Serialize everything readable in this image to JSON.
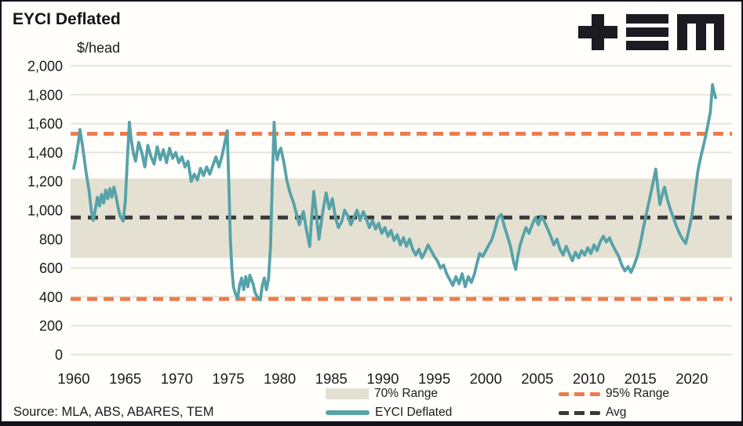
{
  "header": {
    "title": "EYCI Deflated",
    "unit_label": "$/head",
    "logo": {
      "name": "tem-logo",
      "glyphs": [
        "plus",
        "triple-bar",
        "m"
      ],
      "color": "#1c1b22"
    }
  },
  "source_note": "Source: MLA, ABS, ABARES,  TEM",
  "colors": {
    "series_line": "#57a2a9",
    "range95_line": "#ed7c4d",
    "avg_line": "#3a3a3a",
    "band_fill": "#e4e1d2",
    "gridline": "#e7e5d9",
    "axis_text": "#1a1a1a",
    "frame_border": "#14131b"
  },
  "legend": [
    {
      "label": "70% Range",
      "swatch": "band",
      "color": "#e4e1d2"
    },
    {
      "label": "95% Range",
      "swatch": "dashed-line",
      "color": "#ed7c4d"
    },
    {
      "label": "EYCI Deflated",
      "swatch": "solid-line",
      "color": "#57a2a9"
    },
    {
      "label": "Avg",
      "swatch": "dashed-line",
      "color": "#3a3a3a"
    }
  ],
  "chart_data": {
    "type": "line",
    "title": "EYCI Deflated",
    "ylabel": "$/head",
    "xlabel": "",
    "ylim": [
      0,
      2000
    ],
    "xlim": [
      1959.7,
      2023.9
    ],
    "grid": "horizontal",
    "legend_position": "bottom",
    "y_ticks": [
      {
        "value": 0,
        "label": "0"
      },
      {
        "value": 200,
        "label": "200"
      },
      {
        "value": 400,
        "label": "400"
      },
      {
        "value": 600,
        "label": "600"
      },
      {
        "value": 800,
        "label": "800"
      },
      {
        "value": 1000,
        "label": "1,000"
      },
      {
        "value": 1200,
        "label": "1,200"
      },
      {
        "value": 1400,
        "label": "1,400"
      },
      {
        "value": 1600,
        "label": "1,600"
      },
      {
        "value": 1800,
        "label": "1,800"
      },
      {
        "value": 2000,
        "label": "2,000"
      }
    ],
    "x_ticks": [
      1960,
      1965,
      1970,
      1975,
      1980,
      1985,
      1990,
      1995,
      2000,
      2005,
      2010,
      2015,
      2020
    ],
    "band_70_range": [
      670,
      1220
    ],
    "range_95": [
      385,
      1530
    ],
    "avg": 950,
    "series": [
      {
        "name": "EYCI Deflated",
        "points": [
          [
            1960.0,
            1290
          ],
          [
            1960.2,
            1360
          ],
          [
            1960.45,
            1470
          ],
          [
            1960.6,
            1560
          ],
          [
            1960.8,
            1470
          ],
          [
            1961.0,
            1370
          ],
          [
            1961.2,
            1260
          ],
          [
            1961.5,
            1130
          ],
          [
            1961.7,
            1000
          ],
          [
            1961.9,
            930
          ],
          [
            1962.1,
            1010
          ],
          [
            1962.3,
            1090
          ],
          [
            1962.5,
            1030
          ],
          [
            1962.7,
            1110
          ],
          [
            1962.9,
            1050
          ],
          [
            1963.1,
            1140
          ],
          [
            1963.3,
            1080
          ],
          [
            1963.5,
            1150
          ],
          [
            1963.7,
            1090
          ],
          [
            1963.9,
            1160
          ],
          [
            1964.1,
            1100
          ],
          [
            1964.3,
            1020
          ],
          [
            1964.5,
            960
          ],
          [
            1964.8,
            925
          ],
          [
            1965.0,
            1060
          ],
          [
            1965.2,
            1350
          ],
          [
            1965.4,
            1610
          ],
          [
            1965.6,
            1480
          ],
          [
            1965.8,
            1390
          ],
          [
            1966.0,
            1340
          ],
          [
            1966.3,
            1470
          ],
          [
            1966.6,
            1400
          ],
          [
            1966.9,
            1300
          ],
          [
            1967.2,
            1450
          ],
          [
            1967.5,
            1370
          ],
          [
            1967.8,
            1320
          ],
          [
            1968.1,
            1440
          ],
          [
            1968.4,
            1350
          ],
          [
            1968.7,
            1420
          ],
          [
            1969.0,
            1330
          ],
          [
            1969.3,
            1430
          ],
          [
            1969.6,
            1360
          ],
          [
            1969.9,
            1400
          ],
          [
            1970.2,
            1330
          ],
          [
            1970.5,
            1370
          ],
          [
            1970.8,
            1300
          ],
          [
            1971.1,
            1340
          ],
          [
            1971.4,
            1200
          ],
          [
            1971.7,
            1250
          ],
          [
            1972.0,
            1210
          ],
          [
            1972.3,
            1290
          ],
          [
            1972.6,
            1240
          ],
          [
            1972.9,
            1300
          ],
          [
            1973.2,
            1250
          ],
          [
            1973.5,
            1310
          ],
          [
            1973.8,
            1370
          ],
          [
            1974.1,
            1300
          ],
          [
            1974.4,
            1380
          ],
          [
            1974.7,
            1480
          ],
          [
            1974.9,
            1550
          ],
          [
            1975.05,
            1200
          ],
          [
            1975.2,
            800
          ],
          [
            1975.35,
            600
          ],
          [
            1975.5,
            470
          ],
          [
            1975.7,
            420
          ],
          [
            1975.9,
            390
          ],
          [
            1976.1,
            480
          ],
          [
            1976.3,
            530
          ],
          [
            1976.5,
            450
          ],
          [
            1976.7,
            540
          ],
          [
            1976.9,
            470
          ],
          [
            1977.1,
            550
          ],
          [
            1977.4,
            490
          ],
          [
            1977.6,
            430
          ],
          [
            1977.9,
            390
          ],
          [
            1978.1,
            380
          ],
          [
            1978.3,
            480
          ],
          [
            1978.5,
            530
          ],
          [
            1978.7,
            450
          ],
          [
            1978.9,
            520
          ],
          [
            1979.1,
            750
          ],
          [
            1979.25,
            1150
          ],
          [
            1979.45,
            1610
          ],
          [
            1979.6,
            1420
          ],
          [
            1979.75,
            1350
          ],
          [
            1979.9,
            1400
          ],
          [
            1980.1,
            1430
          ],
          [
            1980.4,
            1330
          ],
          [
            1980.7,
            1200
          ],
          [
            1981.0,
            1120
          ],
          [
            1981.3,
            1060
          ],
          [
            1981.6,
            980
          ],
          [
            1981.9,
            900
          ],
          [
            1982.1,
            950
          ],
          [
            1982.3,
            990
          ],
          [
            1982.6,
            860
          ],
          [
            1982.9,
            750
          ],
          [
            1983.1,
            950
          ],
          [
            1983.3,
            1130
          ],
          [
            1983.5,
            1000
          ],
          [
            1983.8,
            800
          ],
          [
            1984.0,
            900
          ],
          [
            1984.2,
            1000
          ],
          [
            1984.5,
            1120
          ],
          [
            1984.8,
            1010
          ],
          [
            1985.1,
            1080
          ],
          [
            1985.4,
            950
          ],
          [
            1985.7,
            880
          ],
          [
            1986.0,
            920
          ],
          [
            1986.3,
            1000
          ],
          [
            1986.6,
            960
          ],
          [
            1986.9,
            900
          ],
          [
            1987.2,
            950
          ],
          [
            1987.5,
            1000
          ],
          [
            1987.8,
            930
          ],
          [
            1988.1,
            990
          ],
          [
            1988.4,
            940
          ],
          [
            1988.7,
            880
          ],
          [
            1989.0,
            930
          ],
          [
            1989.3,
            870
          ],
          [
            1989.6,
            910
          ],
          [
            1989.9,
            840
          ],
          [
            1990.2,
            880
          ],
          [
            1990.5,
            820
          ],
          [
            1990.8,
            860
          ],
          [
            1991.1,
            790
          ],
          [
            1991.4,
            830
          ],
          [
            1991.7,
            760
          ],
          [
            1992.0,
            810
          ],
          [
            1992.3,
            750
          ],
          [
            1992.6,
            800
          ],
          [
            1992.9,
            730
          ],
          [
            1993.2,
            690
          ],
          [
            1993.5,
            730
          ],
          [
            1993.8,
            670
          ],
          [
            1994.1,
            710
          ],
          [
            1994.4,
            760
          ],
          [
            1994.7,
            720
          ],
          [
            1995.0,
            680
          ],
          [
            1995.3,
            650
          ],
          [
            1995.6,
            600
          ],
          [
            1995.9,
            620
          ],
          [
            1996.2,
            560
          ],
          [
            1996.5,
            520
          ],
          [
            1996.8,
            480
          ],
          [
            1997.1,
            540
          ],
          [
            1997.4,
            490
          ],
          [
            1997.7,
            560
          ],
          [
            1998.0,
            470
          ],
          [
            1998.3,
            540
          ],
          [
            1998.6,
            500
          ],
          [
            1998.9,
            560
          ],
          [
            1999.1,
            620
          ],
          [
            1999.4,
            700
          ],
          [
            1999.7,
            680
          ],
          [
            2000.0,
            720
          ],
          [
            2000.3,
            760
          ],
          [
            2000.6,
            800
          ],
          [
            2000.9,
            870
          ],
          [
            2001.2,
            950
          ],
          [
            2001.5,
            970
          ],
          [
            2001.8,
            890
          ],
          [
            2002.1,
            820
          ],
          [
            2002.4,
            750
          ],
          [
            2002.7,
            640
          ],
          [
            2002.9,
            590
          ],
          [
            2003.1,
            680
          ],
          [
            2003.3,
            750
          ],
          [
            2003.6,
            820
          ],
          [
            2003.9,
            880
          ],
          [
            2004.2,
            840
          ],
          [
            2004.5,
            900
          ],
          [
            2004.8,
            950
          ],
          [
            2005.1,
            900
          ],
          [
            2005.4,
            960
          ],
          [
            2005.7,
            920
          ],
          [
            2006.0,
            870
          ],
          [
            2006.3,
            820
          ],
          [
            2006.6,
            760
          ],
          [
            2006.9,
            800
          ],
          [
            2007.2,
            730
          ],
          [
            2007.5,
            690
          ],
          [
            2007.8,
            750
          ],
          [
            2008.1,
            700
          ],
          [
            2008.4,
            650
          ],
          [
            2008.7,
            710
          ],
          [
            2009.0,
            670
          ],
          [
            2009.3,
            720
          ],
          [
            2009.6,
            690
          ],
          [
            2009.9,
            740
          ],
          [
            2010.2,
            700
          ],
          [
            2010.5,
            760
          ],
          [
            2010.8,
            720
          ],
          [
            2011.1,
            780
          ],
          [
            2011.4,
            820
          ],
          [
            2011.7,
            780
          ],
          [
            2012.0,
            810
          ],
          [
            2012.3,
            760
          ],
          [
            2012.6,
            720
          ],
          [
            2012.9,
            680
          ],
          [
            2013.2,
            620
          ],
          [
            2013.5,
            580
          ],
          [
            2013.8,
            610
          ],
          [
            2014.1,
            570
          ],
          [
            2014.4,
            620
          ],
          [
            2014.7,
            680
          ],
          [
            2015.0,
            770
          ],
          [
            2015.3,
            880
          ],
          [
            2015.6,
            980
          ],
          [
            2015.9,
            1080
          ],
          [
            2016.2,
            1180
          ],
          [
            2016.5,
            1285
          ],
          [
            2016.7,
            1150
          ],
          [
            2016.9,
            1040
          ],
          [
            2017.1,
            1100
          ],
          [
            2017.35,
            1160
          ],
          [
            2017.6,
            1080
          ],
          [
            2017.9,
            1010
          ],
          [
            2018.2,
            950
          ],
          [
            2018.5,
            890
          ],
          [
            2018.8,
            840
          ],
          [
            2019.1,
            800
          ],
          [
            2019.4,
            770
          ],
          [
            2019.7,
            860
          ],
          [
            2020.0,
            960
          ],
          [
            2020.3,
            1120
          ],
          [
            2020.6,
            1280
          ],
          [
            2020.9,
            1380
          ],
          [
            2021.2,
            1470
          ],
          [
            2021.5,
            1570
          ],
          [
            2021.8,
            1680
          ],
          [
            2022.0,
            1870
          ],
          [
            2022.15,
            1820
          ],
          [
            2022.3,
            1780
          ]
        ]
      }
    ]
  }
}
